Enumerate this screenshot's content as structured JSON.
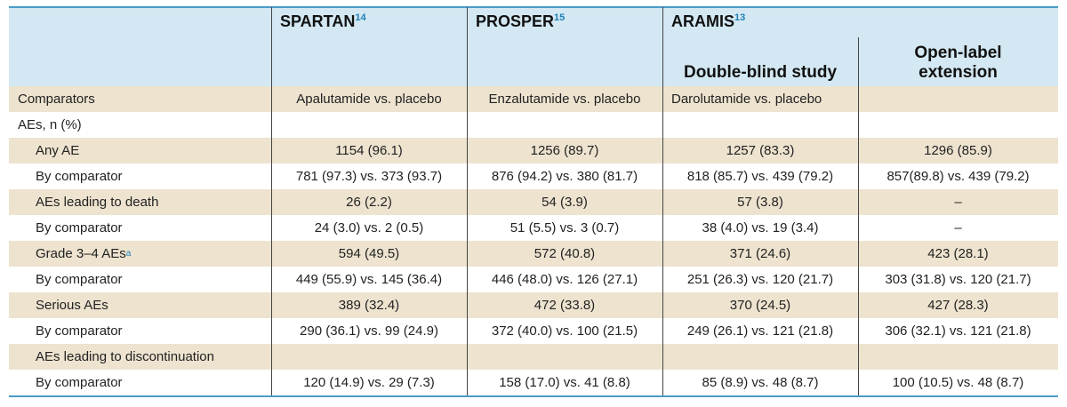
{
  "header": {
    "studies": [
      {
        "name": "SPARTAN",
        "ref": "14"
      },
      {
        "name": "PROSPER",
        "ref": "15"
      },
      {
        "name": "ARAMIS",
        "ref": "13"
      }
    ],
    "subheaders": [
      "Double-blind study",
      "Open-label extension"
    ]
  },
  "table": {
    "rows": [
      {
        "label": "Comparators",
        "cells": [
          "Apalutamide vs. placebo",
          "Enzalutamide vs. placebo",
          "Darolutamide vs. placebo"
        ]
      },
      {
        "label": "AEs, n (%)",
        "cells": []
      },
      {
        "label": "Any AE",
        "cells": [
          "1154 (96.1)",
          "1256 (89.7)",
          "1257 (83.3)",
          "1296 (85.9)"
        ]
      },
      {
        "label": "By comparator",
        "cells": [
          "781 (97.3) vs. 373 (93.7)",
          "876 (94.2) vs. 380 (81.7)",
          "818 (85.7) vs. 439 (79.2)",
          "857(89.8) vs. 439 (79.2)"
        ]
      },
      {
        "label": "AEs leading to death",
        "cells": [
          "26 (2.2)",
          "54 (3.9)",
          "57 (3.8)",
          "–"
        ]
      },
      {
        "label": "By comparator",
        "cells": [
          "24 (3.0) vs. 2 (0.5)",
          "51 (5.5) vs. 3 (0.7)",
          "38 (4.0) vs. 19 (3.4)",
          "–"
        ]
      },
      {
        "label": "Grade 3–4 AEs",
        "footnote": "a",
        "cells": [
          "594 (49.5)",
          "572 (40.8)",
          "371 (24.6)",
          "423 (28.1)"
        ]
      },
      {
        "label": "By comparator",
        "cells": [
          "449 (55.9) vs. 145 (36.4)",
          "446 (48.0) vs. 126 (27.1)",
          "251 (26.3) vs. 120 (21.7)",
          "303 (31.8) vs. 120 (21.7)"
        ]
      },
      {
        "label": "Serious AEs",
        "cells": [
          "389 (32.4)",
          "472 (33.8)",
          "370 (24.5)",
          "427 (28.3)"
        ]
      },
      {
        "label": "By comparator",
        "cells": [
          "290 (36.1) vs. 99 (24.9)",
          "372 (40.0) vs. 100 (21.5)",
          "249 (26.1) vs. 121 (21.8)",
          "306 (32.1) vs. 121 (21.8)"
        ]
      },
      {
        "label": "AEs leading to discontinuation",
        "cells": []
      },
      {
        "label": "By comparator",
        "cells": [
          "120 (14.9) vs. 29 (7.3)",
          "158 (17.0) vs. 41 (8.8)",
          "85 (8.9) vs. 48 (8.7)",
          "100 (10.5) vs. 48 (8.7)"
        ]
      }
    ]
  }
}
